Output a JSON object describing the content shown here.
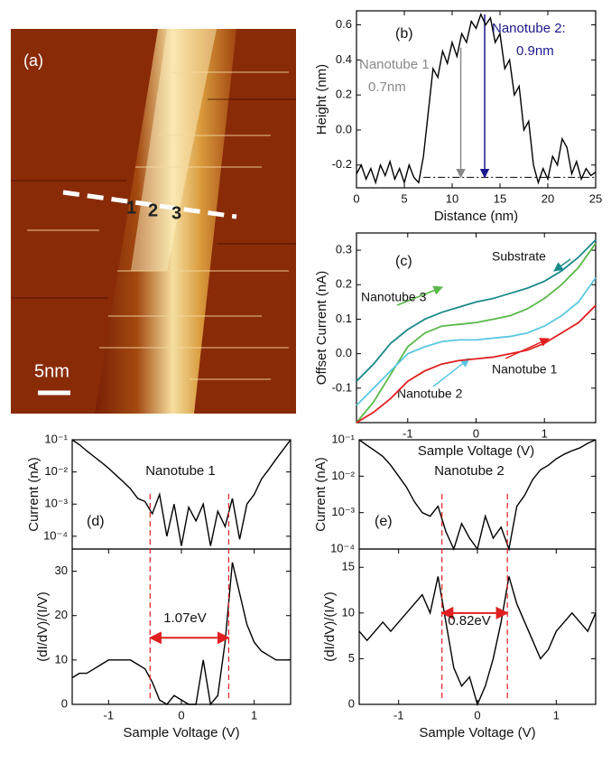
{
  "image_panel": {
    "label": "(a)",
    "scale_bar": "5nm",
    "sites": [
      "1",
      "2",
      "3"
    ]
  },
  "chart_data": [
    {
      "type": "line",
      "panel": "(b)",
      "xlabel": "Distance (nm)",
      "ylabel": "Height (nm)",
      "x": [
        0,
        0.5,
        1,
        1.5,
        2,
        2.5,
        3,
        3.5,
        4,
        4.5,
        5,
        5.5,
        6,
        6.5,
        7,
        7.5,
        8,
        8.5,
        9,
        9.5,
        10,
        10.5,
        11,
        11.5,
        12,
        12.5,
        13,
        13.5,
        14,
        14.5,
        15,
        15.5,
        16,
        16.5,
        17,
        17.5,
        18,
        18.5,
        19,
        19.5,
        20,
        20.5,
        21,
        21.5,
        22,
        22.5,
        23,
        23.5,
        24,
        24.5,
        25
      ],
      "series": [
        {
          "color": "#000000",
          "values": [
            -0.25,
            -0.2,
            -0.28,
            -0.22,
            -0.3,
            -0.2,
            -0.26,
            -0.18,
            -0.28,
            -0.22,
            -0.3,
            -0.2,
            -0.27,
            -0.3,
            -0.15,
            0.1,
            0.35,
            0.3,
            0.45,
            0.38,
            0.5,
            0.42,
            0.55,
            0.5,
            0.62,
            0.58,
            0.66,
            0.6,
            0.64,
            0.5,
            0.55,
            0.35,
            0.4,
            0.2,
            0.25,
            0.0,
            0.05,
            -0.2,
            -0.3,
            -0.22,
            -0.28,
            -0.15,
            -0.2,
            -0.05,
            -0.1,
            -0.25,
            -0.18,
            -0.28,
            -0.22,
            -0.26,
            -0.24
          ]
        }
      ],
      "xlim": [
        0,
        25
      ],
      "ylim": [
        -0.33,
        0.68
      ],
      "xticks": [
        0,
        5,
        10,
        15,
        20,
        25
      ],
      "yticks": [
        -0.2,
        {
          "value": 0,
          "label": "0.0"
        },
        0.2,
        0.4,
        0.6
      ],
      "baseline": -0.27,
      "markers": [
        {
          "x": 10.9,
          "y": 0.47,
          "color": "#888888"
        },
        {
          "x": 13.4,
          "y": 0.66,
          "color": "#1a1a8c"
        }
      ],
      "annotations": [
        {
          "text": "Nanotube 1",
          "color": "#888888"
        },
        {
          "text": "0.7nm",
          "color": "#888888"
        },
        {
          "text": "Nanotube 2:",
          "color": "#1a1a8c"
        },
        {
          "text": "0.9nm",
          "color": "#1a1a8c"
        }
      ]
    },
    {
      "type": "line",
      "panel": "(c)",
      "xlabel": "Sample  Voltage (V)",
      "ylabel": "Offset  Current (nA)",
      "x": [
        -1.75,
        -1.5,
        -1.25,
        -1,
        -0.75,
        -0.5,
        -0.25,
        0,
        0.25,
        0.5,
        0.75,
        1,
        1.25,
        1.5,
        1.75
      ],
      "series": [
        {
          "name": "Substrate",
          "color": "#1a8a8a",
          "values": [
            -0.08,
            -0.03,
            0.03,
            0.07,
            0.1,
            0.12,
            0.135,
            0.15,
            0.16,
            0.175,
            0.19,
            0.21,
            0.24,
            0.28,
            0.33
          ]
        },
        {
          "name": "Nanotube 3",
          "color": "#5ab84a",
          "values": [
            -0.2,
            -0.14,
            -0.06,
            0.02,
            0.06,
            0.08,
            0.085,
            0.09,
            0.1,
            0.11,
            0.13,
            0.16,
            0.2,
            0.25,
            0.32
          ]
        },
        {
          "name": "Nanotube 2",
          "color": "#5bc8e0",
          "values": [
            -0.15,
            -0.1,
            -0.05,
            0,
            0.02,
            0.035,
            0.04,
            0.04,
            0.045,
            0.05,
            0.06,
            0.08,
            0.11,
            0.15,
            0.22
          ]
        },
        {
          "name": "Nanotube 1",
          "color": "#e02020",
          "values": [
            -0.2,
            -0.17,
            -0.13,
            -0.08,
            -0.05,
            -0.03,
            -0.02,
            -0.015,
            -0.01,
            0,
            0.01,
            0.03,
            0.06,
            0.09,
            0.14
          ]
        }
      ],
      "xlim": [
        -1.75,
        1.75
      ],
      "ylim": [
        -0.2,
        0.35
      ],
      "xticks": [
        -1,
        0,
        1
      ],
      "yticks": [
        -0.1,
        {
          "value": 0,
          "label": "0.0"
        },
        0.1,
        0.2,
        0.3
      ]
    },
    {
      "type": "line",
      "panel": "(d)",
      "ylabel": "Current (nA)",
      "yscale": "log",
      "x": [
        -1.5,
        -1.4,
        -1.3,
        -1.2,
        -1.1,
        -1,
        -0.9,
        -0.8,
        -0.7,
        -0.6,
        -0.5,
        -0.4,
        -0.3,
        -0.2,
        -0.1,
        0,
        0.1,
        0.2,
        0.3,
        0.4,
        0.5,
        0.6,
        0.7,
        0.8,
        0.9,
        1,
        1.1,
        1.2,
        1.3,
        1.4,
        1.5
      ],
      "series": [
        {
          "color": "#000000",
          "values": [
            0.1,
            0.07,
            0.045,
            0.03,
            0.02,
            0.013,
            0.008,
            0.005,
            0.003,
            0.0015,
            0.0012,
            0.0005,
            0.002,
            0.0001,
            0.001,
            5e-05,
            0.0008,
            0.0003,
            0.001,
            5e-05,
            0.0006,
            0.0002,
            0.0015,
            8e-05,
            0.001,
            0.002,
            0.006,
            0.012,
            0.025,
            0.05,
            0.1
          ]
        }
      ],
      "xlim": [
        -1.5,
        1.5
      ],
      "ylim": [
        4e-05,
        0.1
      ],
      "yticks": [
        {
          "value": 0.0001,
          "label": "10⁻⁴"
        },
        {
          "value": 0.001,
          "label": "10⁻³"
        },
        {
          "value": 0.01,
          "label": "10⁻²"
        },
        {
          "value": 0.1,
          "label": "10⁻¹"
        }
      ],
      "annotations": [
        {
          "text": "Nanotube 1",
          "color": "#111111"
        }
      ]
    },
    {
      "type": "line",
      "xlabel": "Sample Voltage (V)",
      "ylabel": "(dI/dV)/(I/V)",
      "x": [
        -1.5,
        -1.4,
        -1.3,
        -1.2,
        -1.1,
        -1,
        -0.9,
        -0.8,
        -0.7,
        -0.6,
        -0.5,
        -0.4,
        -0.3,
        -0.2,
        -0.1,
        0,
        0.1,
        0.2,
        0.3,
        0.4,
        0.5,
        0.6,
        0.7,
        0.8,
        0.9,
        1,
        1.1,
        1.2,
        1.3,
        1.4,
        1.5
      ],
      "series": [
        {
          "color": "#000000",
          "values": [
            6,
            7,
            7,
            8,
            9,
            10,
            10,
            10,
            10,
            9,
            8,
            5,
            1,
            0,
            2,
            1,
            0,
            0,
            10,
            0,
            2,
            14,
            32,
            25,
            18,
            14,
            12,
            11,
            10,
            10,
            10
          ]
        }
      ],
      "xlim": [
        -1.5,
        1.5
      ],
      "ylim": [
        0,
        35
      ],
      "xticks": [
        -1,
        0,
        1
      ],
      "yticks": [
        0,
        10,
        20,
        30
      ],
      "gap_edges": [
        -0.43,
        0.65
      ],
      "arrow_y": 15,
      "gap_color": "#e02020",
      "annotations": [
        {
          "text": "1.07eV",
          "color": "#111111"
        }
      ]
    },
    {
      "type": "line",
      "panel": "(e)",
      "ylabel": "Current (nA)",
      "yscale": "log",
      "x": [
        -1.5,
        -1.4,
        -1.3,
        -1.2,
        -1.1,
        -1,
        -0.9,
        -0.8,
        -0.7,
        -0.6,
        -0.5,
        -0.4,
        -0.3,
        -0.2,
        -0.1,
        0,
        0.1,
        0.2,
        0.3,
        0.4,
        0.5,
        0.6,
        0.7,
        0.8,
        0.9,
        1,
        1.1,
        1.2,
        1.3,
        1.4,
        1.5
      ],
      "series": [
        {
          "color": "#000000",
          "values": [
            0.1,
            0.07,
            0.05,
            0.035,
            0.02,
            0.01,
            0.005,
            0.002,
            0.001,
            0.0008,
            0.0015,
            0.0003,
            0.0001,
            0.0005,
            0.0002,
            0.0001,
            0.0008,
            0.0002,
            0.0004,
            0.0001,
            0.0015,
            0.003,
            0.008,
            0.015,
            0.02,
            0.03,
            0.04,
            0.05,
            0.06,
            0.08,
            0.1
          ]
        }
      ],
      "xlim": [
        -1.5,
        1.5
      ],
      "ylim": [
        0.0001,
        0.1
      ],
      "yticks": [
        {
          "value": 0.0001,
          "label": "10⁻⁴"
        },
        {
          "value": 0.001,
          "label": "10⁻³"
        },
        {
          "value": 0.01,
          "label": "10⁻²"
        },
        {
          "value": 0.1,
          "label": "10⁻¹"
        }
      ],
      "annotations": [
        {
          "text": "Nanotube 2",
          "color": "#111111"
        }
      ]
    },
    {
      "type": "line",
      "xlabel": "Sample Voltage (V)",
      "ylabel": "(dI/dV)/(I/V)",
      "x": [
        -1.5,
        -1.4,
        -1.3,
        -1.2,
        -1.1,
        -1,
        -0.9,
        -0.8,
        -0.7,
        -0.6,
        -0.5,
        -0.4,
        -0.3,
        -0.2,
        -0.1,
        0,
        0.1,
        0.2,
        0.3,
        0.4,
        0.5,
        0.6,
        0.7,
        0.8,
        0.9,
        1,
        1.1,
        1.2,
        1.3,
        1.4,
        1.5
      ],
      "series": [
        {
          "color": "#000000",
          "values": [
            8,
            7,
            8,
            9,
            8,
            9,
            10,
            11,
            12,
            10,
            14,
            9,
            4,
            2,
            3,
            0,
            2,
            5,
            9,
            14,
            11,
            9,
            7,
            5,
            6,
            8,
            9,
            10,
            9,
            8,
            10
          ]
        }
      ],
      "xlim": [
        -1.5,
        1.5
      ],
      "ylim": [
        0,
        17
      ],
      "xticks": [
        -1,
        0,
        1
      ],
      "yticks": [
        0,
        5,
        10,
        15
      ],
      "gap_edges": [
        -0.45,
        0.38
      ],
      "arrow_y": 10,
      "gap_color": "#e02020",
      "annotations": [
        {
          "text": "0.82eV",
          "color": "#111111"
        }
      ]
    }
  ]
}
